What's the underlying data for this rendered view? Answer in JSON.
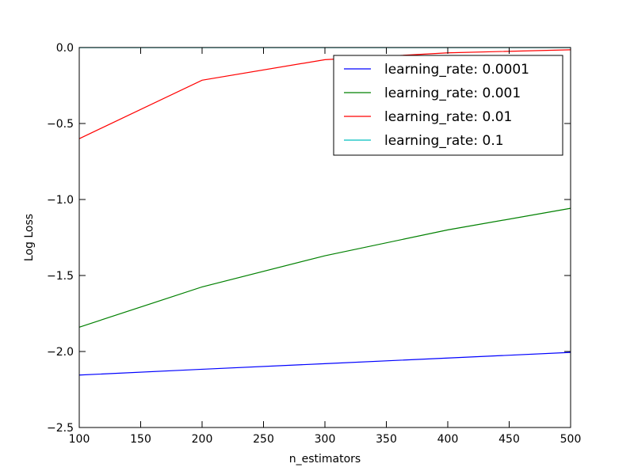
{
  "chart_data": {
    "type": "line",
    "xlabel": "n_estimators",
    "ylabel": "Log Loss",
    "x": [
      100,
      200,
      300,
      400,
      500
    ],
    "xlim": [
      100,
      500
    ],
    "ylim": [
      -2.5,
      0.0
    ],
    "xticks": [
      100,
      150,
      200,
      250,
      300,
      350,
      400,
      450,
      500
    ],
    "yticks": [
      -2.5,
      -2.0,
      -1.5,
      -1.0,
      -0.5,
      0.0
    ],
    "xtick_labels": [
      "100",
      "150",
      "200",
      "250",
      "300",
      "350",
      "400",
      "450",
      "500"
    ],
    "ytick_labels": [
      "−2.5",
      "−2.0",
      "−1.5",
      "−1.0",
      "−0.5",
      "0.0"
    ],
    "grid": false,
    "legend_position": "top-right",
    "series": [
      {
        "name": "learning_rate: 0.0001",
        "color": "#0000ff",
        "values": [
          -2.155,
          -2.117,
          -2.08,
          -2.043,
          -2.006
        ]
      },
      {
        "name": "learning_rate: 0.001",
        "color": "#008000",
        "values": [
          -1.84,
          -1.575,
          -1.37,
          -1.2,
          -1.058
        ]
      },
      {
        "name": "learning_rate: 0.01",
        "color": "#ff0000",
        "values": [
          -0.6,
          -0.215,
          -0.08,
          -0.035,
          -0.015
        ]
      },
      {
        "name": "learning_rate: 0.1",
        "color": "#00bfbf",
        "values": [
          -0.001,
          -0.001,
          -0.001,
          -0.001,
          -0.001
        ]
      }
    ]
  }
}
